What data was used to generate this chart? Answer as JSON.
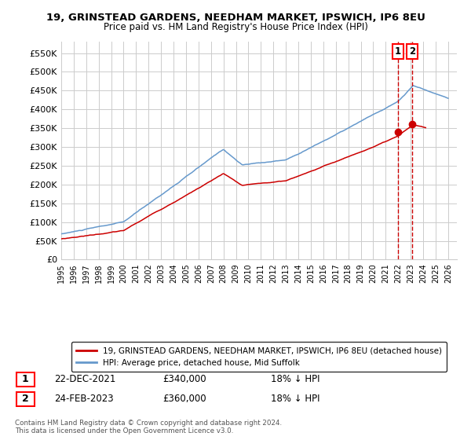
{
  "title1": "19, GRINSTEAD GARDENS, NEEDHAM MARKET, IPSWICH, IP6 8EU",
  "title2": "Price paid vs. HM Land Registry's House Price Index (HPI)",
  "ylabel_ticks": [
    "£0",
    "£50K",
    "£100K",
    "£150K",
    "£200K",
    "£250K",
    "£300K",
    "£350K",
    "£400K",
    "£450K",
    "£500K",
    "£550K"
  ],
  "ytick_vals": [
    0,
    50000,
    100000,
    150000,
    200000,
    250000,
    300000,
    350000,
    400000,
    450000,
    500000,
    550000
  ],
  "ylim": [
    0,
    580000
  ],
  "xlim_start": 1995.3,
  "xlim_end": 2026.7,
  "xticks": [
    1995,
    1996,
    1997,
    1998,
    1999,
    2000,
    2001,
    2002,
    2003,
    2004,
    2005,
    2006,
    2007,
    2008,
    2009,
    2010,
    2011,
    2012,
    2013,
    2014,
    2015,
    2016,
    2017,
    2018,
    2019,
    2020,
    2021,
    2022,
    2023,
    2024,
    2025,
    2026
  ],
  "legend_line1": "19, GRINSTEAD GARDENS, NEEDHAM MARKET, IPSWICH, IP6 8EU (detached house)",
  "legend_line2": "HPI: Average price, detached house, Mid Suffolk",
  "annotation1_date": "22-DEC-2021",
  "annotation1_price": "£340,000",
  "annotation1_hpi": "18% ↓ HPI",
  "annotation2_date": "24-FEB-2023",
  "annotation2_price": "£360,000",
  "annotation2_hpi": "18% ↓ HPI",
  "footer": "Contains HM Land Registry data © Crown copyright and database right 2024.\nThis data is licensed under the Open Government Licence v3.0.",
  "hpi_color": "#6699cc",
  "price_color": "#cc0000",
  "grid_color": "#cccccc",
  "background_color": "#ffffff"
}
